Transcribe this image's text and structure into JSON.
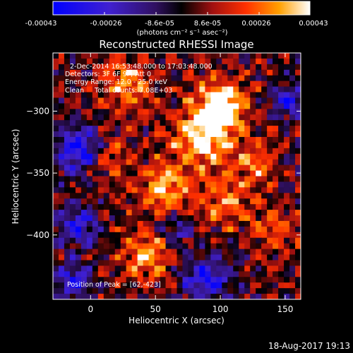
{
  "colorbar": {
    "ticks": [
      "-0.00043",
      "-0.00026",
      "-8.6e-05",
      "8.6e-05",
      "0.00026",
      "0.00043"
    ],
    "tick_values": [
      -0.00043,
      -0.00026,
      -8.6e-05,
      8.6e-05,
      0.00026,
      0.00043
    ],
    "range": [
      -0.00043,
      0.00043
    ],
    "units": "(photons cm⁻² s⁻¹ asec⁻²)"
  },
  "chart_data": {
    "type": "heatmap",
    "title": "Reconstructed RHESSI Image",
    "xlabel": "Heliocentric X (arcsec)",
    "ylabel": "Heliocentric Y (arcsec)",
    "xlim": [
      -29,
      162
    ],
    "ylim": [
      -452,
      -253
    ],
    "xticks": [
      0,
      50,
      100,
      150
    ],
    "yticks": [
      -300,
      -350,
      -400
    ],
    "colormap": "blue-purple-black-red-orange-yellow-white",
    "peak": [
      62,
      -423
    ],
    "annotations": [
      "2-Dec-2014 16:53:48.000 to 17:03:48.000",
      "Detectors: 3F 6F 9F, Att 0",
      "Energy Range: 12.0 - 25.0 keV",
      "Clean     Total counts: 7.08E+03",
      "Position of Peak = [62,-423]"
    ]
  },
  "footer": {
    "timestamp": "18-Aug-2017 19:13"
  }
}
